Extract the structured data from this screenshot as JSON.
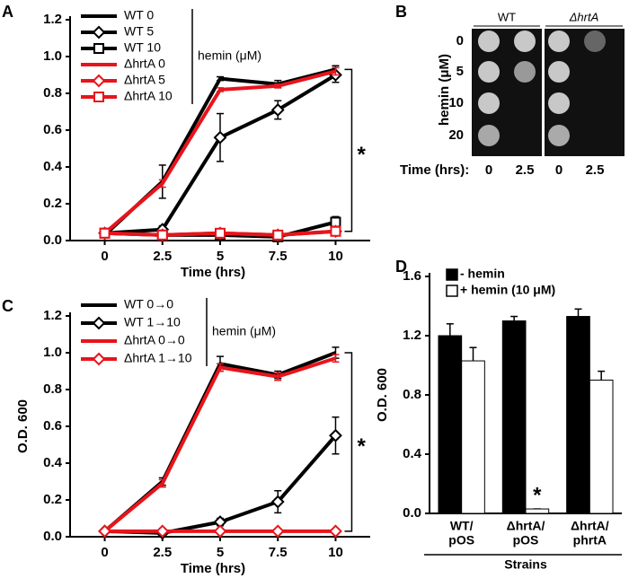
{
  "chart_data": [
    {
      "type": "line",
      "panel_label": "A",
      "xlabel": "Time (hrs)",
      "x": [
        0,
        2.5,
        5,
        7.5,
        10
      ],
      "xlim": [
        -1.5,
        11.5
      ],
      "xticks": [
        0,
        2.5,
        5,
        7.5,
        10
      ],
      "ylim": [
        0,
        1.2
      ],
      "yticks": [
        {
          "value": 0,
          "label": "0.0"
        },
        0.2,
        0.4,
        0.6,
        0.8,
        {
          "value": 1,
          "label": "1.0"
        },
        1.2
      ],
      "annotations": [
        "hemin (μM)",
        "*"
      ],
      "series": [
        {
          "name": "WT 0",
          "color": "#000000",
          "marker": "none",
          "values": [
            0.03,
            0.32,
            0.88,
            0.85,
            0.93
          ],
          "errors": [
            0.01,
            0.09,
            0.01,
            0.02,
            0.02
          ]
        },
        {
          "name": "WT 5",
          "color": "#000000",
          "marker": "diamond",
          "values": [
            0.04,
            0.06,
            0.56,
            0.71,
            0.9
          ],
          "errors": [
            0.01,
            0.02,
            0.13,
            0.05,
            0.04
          ]
        },
        {
          "name": "WT 10",
          "color": "#000000",
          "marker": "square",
          "values": [
            0.04,
            0.03,
            0.03,
            0.02,
            0.1
          ],
          "errors": [
            0.01,
            0.01,
            0.01,
            0.01,
            0.03
          ]
        },
        {
          "name": "ΔhrtA 0",
          "color": "#e8141b",
          "marker": "none",
          "values": [
            0.04,
            0.31,
            0.82,
            0.84,
            0.92
          ],
          "errors": [
            0.01,
            0.02,
            0.01,
            0.01,
            0.02
          ]
        },
        {
          "name": "ΔhrtA 5",
          "color": "#e8141b",
          "marker": "diamond",
          "values": [
            0.04,
            0.03,
            0.04,
            0.03,
            0.05
          ],
          "errors": [
            0.01,
            0.01,
            0.01,
            0.01,
            0.01
          ]
        },
        {
          "name": "ΔhrtA 10",
          "color": "#e8141b",
          "marker": "square",
          "values": [
            0.04,
            0.03,
            0.04,
            0.03,
            0.05
          ],
          "errors": [
            0.01,
            0.01,
            0.01,
            0.01,
            0.01
          ]
        }
      ]
    },
    {
      "type": "line",
      "panel_label": "C",
      "xlabel": "Time (hrs)",
      "ylabel": "O.D. 600",
      "x": [
        0,
        2.5,
        5,
        7.5,
        10
      ],
      "xlim": [
        -1.5,
        11.5
      ],
      "xticks": [
        0,
        2.5,
        5,
        7.5,
        10
      ],
      "ylim": [
        0,
        1.2
      ],
      "yticks": [
        {
          "value": 0,
          "label": "0.0"
        },
        0.2,
        0.4,
        0.6,
        0.8,
        {
          "value": 1,
          "label": "1.0"
        },
        1.2
      ],
      "annotations": [
        "hemin (μM)",
        "*"
      ],
      "series": [
        {
          "name": "WT 0→0",
          "color": "#000000",
          "marker": "none",
          "values": [
            0.03,
            0.3,
            0.94,
            0.88,
            1.0
          ],
          "errors": [
            0.01,
            0.02,
            0.04,
            0.02,
            0.03
          ]
        },
        {
          "name": "WT 1→10",
          "color": "#000000",
          "marker": "diamond",
          "values": [
            0.03,
            0.02,
            0.08,
            0.19,
            0.55
          ],
          "errors": [
            0.01,
            0.01,
            0.02,
            0.06,
            0.1
          ]
        },
        {
          "name": "ΔhrtA 0→0",
          "color": "#e8141b",
          "marker": "none",
          "values": [
            0.03,
            0.29,
            0.92,
            0.87,
            0.97
          ],
          "errors": [
            0.01,
            0.02,
            0.02,
            0.02,
            0.02
          ]
        },
        {
          "name": "ΔhrtA 1→10",
          "color": "#e8141b",
          "marker": "diamond",
          "values": [
            0.03,
            0.03,
            0.03,
            0.03,
            0.03
          ],
          "errors": [
            0.01,
            0.01,
            0.01,
            0.01,
            0.01
          ]
        }
      ]
    },
    {
      "type": "bar",
      "panel_label": "D",
      "xlabel": "Strains",
      "ylabel": "O.D. 600",
      "categories": [
        [
          "WT/",
          "pOS"
        ],
        [
          "ΔhrtA/",
          "pOS"
        ],
        [
          "ΔhrtA/",
          "phrtA"
        ]
      ],
      "ylim": [
        0,
        1.6
      ],
      "yticks": [
        {
          "value": 0,
          "label": "0.0"
        },
        0.4,
        0.8,
        1.2,
        1.6
      ],
      "annotations": [
        "*"
      ],
      "series": [
        {
          "name": "- hemin",
          "color": "#000000",
          "values": [
            1.2,
            1.3,
            1.33
          ],
          "errors": [
            0.08,
            0.03,
            0.05
          ]
        },
        {
          "name": "+ hemin (10 μM)",
          "color": "#ffffff",
          "values": [
            1.03,
            0.03,
            0.9
          ],
          "errors": [
            0.09,
            0.0,
            0.06
          ]
        }
      ]
    }
  ],
  "panel_b": {
    "panel_label": "B",
    "strains": [
      "WT",
      "ΔhrtA"
    ],
    "ylabel": "hemin (μM)",
    "rows": [
      "0",
      "5",
      "10",
      "20"
    ],
    "time_label": "Time (hrs):",
    "times": [
      "0",
      "2.5",
      "0",
      "2.5"
    ]
  }
}
